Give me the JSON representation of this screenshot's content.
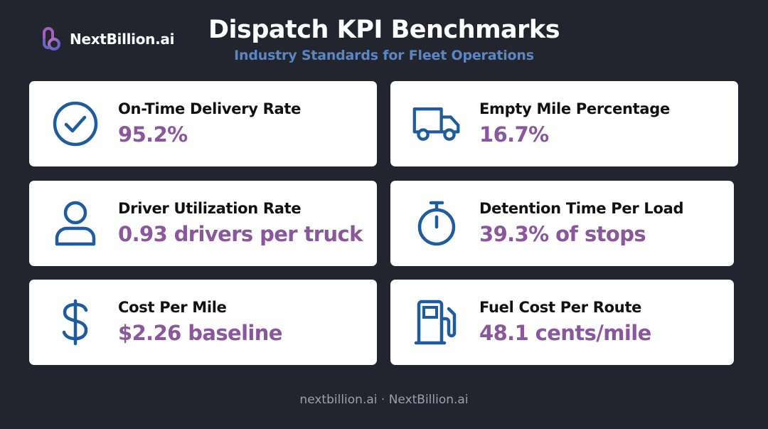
{
  "brand": {
    "name": "NextBillion.ai"
  },
  "header": {
    "title": "Dispatch KPI Benchmarks",
    "subtitle": "Industry Standards for Fleet Operations"
  },
  "kpis": [
    {
      "label": "On-Time Delivery Rate",
      "value": "95.2%",
      "icon": "check-circle-icon"
    },
    {
      "label": "Empty Mile Percentage",
      "value": "16.7%",
      "icon": "truck-icon"
    },
    {
      "label": "Driver Utilization Rate",
      "value": "0.93 drivers per truck",
      "icon": "user-icon"
    },
    {
      "label": "Detention Time Per Load",
      "value": "39.3% of stops",
      "icon": "stopwatch-icon"
    },
    {
      "label": "Cost Per Mile",
      "value": "$2.26 baseline",
      "icon": "dollar-icon"
    },
    {
      "label": "Fuel Cost Per Route",
      "value": "48.1 cents/mile",
      "icon": "fuel-pump-icon"
    }
  ],
  "footer": {
    "text": "nextbillion.ai · NextBillion.ai"
  },
  "colors": {
    "background": "#22252d",
    "accent_value": "#8a569c",
    "icon_blue": "#1f5c9e",
    "subtitle_blue": "#5b86c4"
  }
}
